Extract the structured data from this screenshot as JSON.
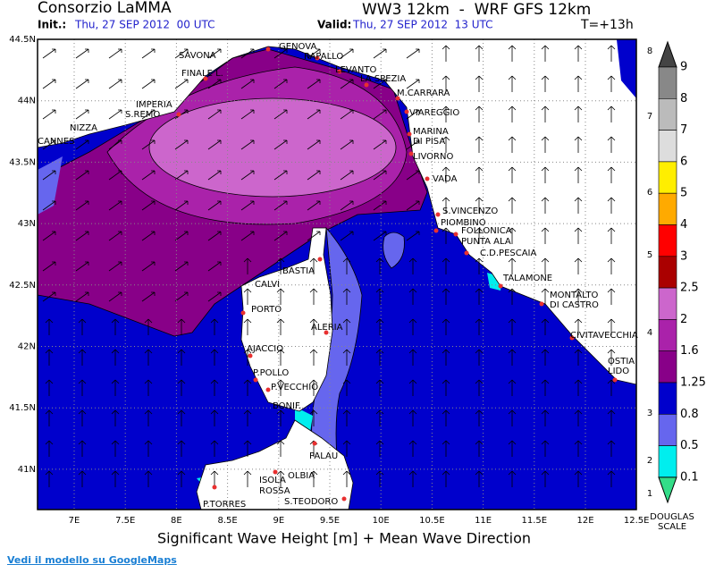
{
  "header": {
    "brand": "Consorzio LaMMA",
    "model": "WW3 12km  -  WRF GFS 12km",
    "init_label": "Init.:",
    "init_time": "Thu, 27 SEP 2012  00 UTC",
    "valid_label": "Valid:",
    "valid_time": "Thu, 27 SEP 2012  13 UTC",
    "lead": "T=+13h"
  },
  "map": {
    "lat_labels": [
      "44.5N",
      "44N",
      "43.5N",
      "43N",
      "42.5N",
      "42N",
      "41.5N",
      "41N"
    ],
    "lon_labels": [
      "7E",
      "7.5E",
      "8E",
      "8.5E",
      "9E",
      "9.5E",
      "10E",
      "10.5E",
      "11E",
      "11.5E",
      "12E",
      "12.5E"
    ],
    "places": [
      "SAVONA",
      "GENOVA",
      "RAPALLO",
      "FINALE L.",
      "LEVANTO",
      "LA SPEZIA",
      "M.CARRARA",
      "IMPERIA",
      "S.REMO",
      "VIAREGGIO",
      "NIZZA",
      "MARINA",
      "DI PISA",
      "CANNES",
      "LIVORNO",
      "VADA",
      "S.VINCENZO",
      "PIOMBINO",
      "FOLLONICA",
      "PUNTA ALA",
      "C.D.PESCAIA",
      "BASTIA",
      "TALAMONE",
      "CALVI",
      "MONTALTO",
      "DI CASTRO",
      "PORTO",
      "ALERIA",
      "CIVITAVECCHIA",
      "AJACCIO",
      "OSTIA",
      "LIDO",
      "P.POLLO",
      "P.VECCHIO",
      "BONIF.",
      "PALAU",
      "OLBIA",
      "ISOLA",
      "ROSSA",
      "P.TORRES",
      "S.TEODORO"
    ],
    "caption": "Significant Wave Height [m] + Mean Wave Direction"
  },
  "legend": {
    "thresholds": [
      "9",
      "8",
      "7",
      "6",
      "5",
      "4",
      "3",
      "2.5",
      "2",
      "1.6",
      "1.25",
      "0.8",
      "0.5",
      "0.1"
    ],
    "douglas": [
      "8",
      "7",
      "6",
      "5",
      "4",
      "3",
      "2",
      "1"
    ],
    "douglas_title": [
      "DOUGLAS",
      "SCALE"
    ]
  },
  "footer_link": "Vedi il modello su GoogleMaps"
}
